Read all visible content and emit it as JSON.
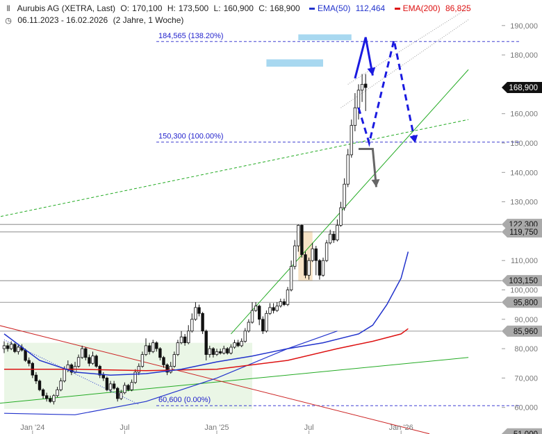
{
  "header": {
    "instrument": "Aurubis AG (XETRA, Last)",
    "open_label": "O:",
    "open": "170,100",
    "high_label": "H:",
    "high": "173,500",
    "low_label": "L:",
    "low": "160,900",
    "close_label": "C:",
    "close": "168,900",
    "ema50_label": "EMA(50)",
    "ema50_value": "112,464",
    "ema200_label": "EMA(200)",
    "ema200_value": "86,825",
    "date_range": "06.11.2023 - 16.02.2026",
    "period": "(2 Jahre, 1 Woche)",
    "instrument_icon": "candles-icon",
    "date_icon": "clock-icon"
  },
  "colors": {
    "ema50": "#2233cc",
    "ema200": "#dd1111",
    "up": "#ffffff",
    "down": "#111111",
    "fib": "#2222cc",
    "arrow_blue": "#1a1ae0",
    "arrow_gray": "#666666",
    "trend_green": "#22aa22",
    "trend_red": "#cc2222",
    "zone_blue": "#a8d8f0",
    "zone_orange": "#f5dcb8",
    "zone_green": "#eaf6e6"
  },
  "chart_data": {
    "type": "candlestick",
    "y_scale": "linear",
    "ylim": [
      50000,
      195000
    ],
    "y_ticks": [
      60000,
      70000,
      80000,
      90000,
      100000,
      110000,
      130000,
      140000,
      150000,
      160000,
      180000,
      190000
    ],
    "y_tick_labels": [
      "60,000",
      "70,000",
      "80,000",
      "90,000",
      "100,000",
      "110,000",
      "130,000",
      "140,000",
      "150,000",
      "160,000",
      "180,000",
      "190,000"
    ],
    "x_labels": [
      "Jan '24",
      "Jul",
      "Jan '25",
      "Jul",
      "Jan '26"
    ],
    "x_label_weeks": [
      8,
      34,
      60,
      86,
      112
    ],
    "price_labels": [
      {
        "text": "168,900",
        "value": 168900,
        "style": "dark"
      },
      {
        "text": "122,300",
        "value": 122300,
        "style": "gray"
      },
      {
        "text": "119,750",
        "value": 119750,
        "style": "gray"
      },
      {
        "text": "103,150",
        "value": 103150,
        "style": "gray"
      },
      {
        "text": "95,800",
        "value": 95800,
        "style": "gray"
      },
      {
        "text": "85,960",
        "value": 85960,
        "style": "gray"
      },
      {
        "text": "51,000",
        "value": 51000,
        "style": "gray"
      }
    ],
    "fib_levels": [
      {
        "text": "184,565 (138.20%)",
        "value": 184565
      },
      {
        "text": "150,300 (100.00%)",
        "value": 150300
      },
      {
        "text": "60,600 (0.00%)",
        "value": 60600
      }
    ],
    "horizontal_lines": [
      122300,
      119750,
      103150,
      95800,
      85960
    ],
    "ema50": [
      [
        0,
        85000
      ],
      [
        10,
        76000
      ],
      [
        20,
        72000
      ],
      [
        30,
        71000
      ],
      [
        40,
        71500
      ],
      [
        50,
        73000
      ],
      [
        60,
        75500
      ],
      [
        70,
        77500
      ],
      [
        80,
        80000
      ],
      [
        90,
        82000
      ],
      [
        100,
        85000
      ],
      [
        104,
        88000
      ],
      [
        108,
        95000
      ],
      [
        112,
        104000
      ],
      [
        114,
        113000
      ]
    ],
    "ema200": [
      [
        0,
        73000
      ],
      [
        20,
        73000
      ],
      [
        40,
        72500
      ],
      [
        60,
        73000
      ],
      [
        80,
        76000
      ],
      [
        94,
        80000
      ],
      [
        104,
        82500
      ],
      [
        112,
        85000
      ],
      [
        114,
        86800
      ]
    ],
    "candles": [
      [
        0,
        80000,
        81000,
        82500,
        78500
      ],
      [
        1,
        81000,
        80000,
        82000,
        79000
      ],
      [
        2,
        80000,
        81500,
        82500,
        79500
      ],
      [
        3,
        81500,
        79000,
        82000,
        78500
      ],
      [
        4,
        79000,
        80500,
        81500,
        78000
      ],
      [
        5,
        80500,
        79500,
        81500,
        79000
      ],
      [
        6,
        79500,
        76000,
        80000,
        75500
      ],
      [
        7,
        76000,
        75000,
        77000,
        74000
      ],
      [
        8,
        75000,
        71000,
        75500,
        70000
      ],
      [
        9,
        71000,
        69000,
        72000,
        68000
      ],
      [
        10,
        69000,
        66000,
        69500,
        65500
      ],
      [
        11,
        66000,
        64000,
        66500,
        63000
      ],
      [
        12,
        64000,
        63000,
        65000,
        62000
      ],
      [
        13,
        63000,
        62000,
        64000,
        61500
      ],
      [
        14,
        62000,
        64000,
        64500,
        61000
      ],
      [
        15,
        64000,
        66000,
        67000,
        63500
      ],
      [
        16,
        66000,
        69000,
        70000,
        65500
      ],
      [
        17,
        69000,
        73000,
        74000,
        68500
      ],
      [
        18,
        73000,
        74500,
        76000,
        72000
      ],
      [
        19,
        74500,
        72000,
        75000,
        71000
      ],
      [
        20,
        72000,
        74000,
        75500,
        71500
      ],
      [
        21,
        74000,
        77000,
        78000,
        73500
      ],
      [
        22,
        77000,
        80000,
        81000,
        76500
      ],
      [
        23,
        80000,
        77000,
        80500,
        76000
      ],
      [
        24,
        77000,
        75000,
        78000,
        74000
      ],
      [
        25,
        75000,
        77500,
        79000,
        74500
      ],
      [
        26,
        77500,
        74000,
        78000,
        73500
      ],
      [
        27,
        74000,
        71000,
        74500,
        70000
      ],
      [
        28,
        71000,
        70000,
        72000,
        69000
      ],
      [
        29,
        70000,
        66000,
        70500,
        65500
      ],
      [
        30,
        66000,
        68000,
        69000,
        65000
      ],
      [
        31,
        68000,
        66500,
        69000,
        66000
      ],
      [
        32,
        66500,
        63000,
        67000,
        62000
      ],
      [
        33,
        63000,
        65000,
        66000,
        62500
      ],
      [
        34,
        65000,
        67500,
        68500,
        64500
      ],
      [
        35,
        67500,
        66000,
        68000,
        65500
      ],
      [
        36,
        66000,
        68500,
        69500,
        65500
      ],
      [
        37,
        68500,
        72000,
        73000,
        68000
      ],
      [
        38,
        72000,
        74000,
        75000,
        71000
      ],
      [
        39,
        74000,
        78000,
        79000,
        73500
      ],
      [
        40,
        78000,
        81000,
        83500,
        77500
      ],
      [
        41,
        81000,
        79000,
        82000,
        78000
      ],
      [
        42,
        79000,
        82000,
        83000,
        78500
      ],
      [
        43,
        82000,
        80000,
        82500,
        79000
      ],
      [
        44,
        80000,
        77000,
        80500,
        76000
      ],
      [
        45,
        77000,
        74500,
        77500,
        73500
      ],
      [
        46,
        74500,
        72000,
        75000,
        71000
      ],
      [
        47,
        72000,
        74000,
        75500,
        71500
      ],
      [
        48,
        74000,
        78000,
        79000,
        73500
      ],
      [
        49,
        78000,
        82000,
        83000,
        77500
      ],
      [
        50,
        82000,
        84000,
        86000,
        81500
      ],
      [
        51,
        84000,
        82000,
        85000,
        81000
      ],
      [
        52,
        82000,
        86000,
        88000,
        81500
      ],
      [
        53,
        86000,
        90000,
        92000,
        85500
      ],
      [
        54,
        90000,
        94000,
        95800,
        89500
      ],
      [
        55,
        94000,
        92000,
        95000,
        91000
      ],
      [
        56,
        92000,
        86000,
        92500,
        85000
      ],
      [
        57,
        86000,
        78000,
        86500,
        76000
      ],
      [
        58,
        78000,
        80000,
        81000,
        77000
      ],
      [
        59,
        80000,
        78000,
        80500,
        77000
      ],
      [
        60,
        78000,
        79000,
        80000,
        77500
      ],
      [
        61,
        79000,
        78500,
        80000,
        78000
      ],
      [
        62,
        78500,
        80000,
        81000,
        78000
      ],
      [
        63,
        80000,
        78500,
        80500,
        78000
      ],
      [
        64,
        78500,
        80500,
        81500,
        78000
      ],
      [
        65,
        80500,
        82000,
        83000,
        80000
      ],
      [
        66,
        82000,
        81000,
        83000,
        80500
      ],
      [
        67,
        81000,
        82500,
        83500,
        80500
      ],
      [
        68,
        82500,
        86000,
        87000,
        82000
      ],
      [
        69,
        86000,
        89000,
        90000,
        85500
      ],
      [
        70,
        89000,
        93000,
        95800,
        88500
      ],
      [
        71,
        93000,
        94500,
        95800,
        92500
      ],
      [
        72,
        94500,
        90000,
        95000,
        88000
      ],
      [
        73,
        90000,
        86000,
        91000,
        85000
      ],
      [
        74,
        86000,
        92000,
        93000,
        85500
      ],
      [
        75,
        92000,
        94000,
        95500,
        91500
      ],
      [
        76,
        94000,
        93000,
        95500,
        92000
      ],
      [
        77,
        93000,
        94500,
        95800,
        92500
      ],
      [
        78,
        94500,
        96000,
        97000,
        94000
      ],
      [
        79,
        96000,
        95000,
        97000,
        94500
      ],
      [
        80,
        95000,
        100000,
        101000,
        94500
      ],
      [
        81,
        100000,
        108000,
        110000,
        99500
      ],
      [
        82,
        108000,
        115000,
        117000,
        107000
      ],
      [
        83,
        115000,
        122000,
        122300,
        113000
      ],
      [
        84,
        122000,
        112000,
        122300,
        111000
      ],
      [
        85,
        112000,
        105000,
        113000,
        104000
      ],
      [
        86,
        105000,
        110000,
        111000,
        103500
      ],
      [
        87,
        110000,
        114000,
        116000,
        109500
      ],
      [
        88,
        114000,
        110000,
        115000,
        105000
      ],
      [
        89,
        110000,
        105000,
        110500,
        103500
      ],
      [
        90,
        105000,
        110000,
        111000,
        104500
      ],
      [
        91,
        110000,
        116000,
        117000,
        109500
      ],
      [
        92,
        116000,
        119000,
        120500,
        115500
      ],
      [
        93,
        119000,
        117000,
        120000,
        116000
      ],
      [
        94,
        117000,
        122000,
        124000,
        116500
      ],
      [
        95,
        122000,
        128000,
        130000,
        121500
      ],
      [
        96,
        128000,
        136000,
        138000,
        127000
      ],
      [
        97,
        136000,
        146000,
        148000,
        135000
      ],
      [
        98,
        146000,
        156000,
        158000,
        145000
      ],
      [
        99,
        156000,
        162000,
        167000,
        154000
      ],
      [
        100,
        162000,
        168000,
        170000,
        158000
      ],
      [
        101,
        168000,
        170000,
        173500,
        164000
      ],
      [
        102,
        170100,
        168900,
        173500,
        160900
      ]
    ]
  },
  "annotations": {
    "arrows_blue": [
      [
        [
          99,
          172000
        ],
        [
          102,
          186000
        ],
        [
          104,
          173000
        ]
      ],
      [
        [
          100,
          162000
        ],
        [
          103,
          150000
        ],
        [
          110,
          185000
        ],
        [
          116,
          150000
        ]
      ]
    ],
    "arrow_gray": [
      [
        100,
        148000
      ],
      [
        104,
        148000
      ],
      [
        105,
        135000
      ]
    ],
    "blue_zones": [
      {
        "x0": 74,
        "x1": 90,
        "y0": 176000,
        "y1": 178500
      },
      {
        "x0": 83,
        "x1": 98,
        "y0": 185000,
        "y1": 187000
      }
    ],
    "orange_zone": {
      "x0": 83,
      "x1": 87,
      "y0": 103000,
      "y1": 120000
    },
    "green_zone": {
      "x0": 0,
      "x1": 70,
      "y0": 59500,
      "y1": 82000
    },
    "trend_green_main": [
      [
        64,
        85000
      ],
      [
        131,
        175000
      ]
    ],
    "trend_green_dashed": [
      [
        -5,
        124000
      ],
      [
        131,
        158000
      ]
    ],
    "trend_green_low": [
      [
        -5,
        61000
      ],
      [
        131,
        77000
      ]
    ],
    "trend_red": [
      [
        -5,
        89000
      ],
      [
        120,
        51000
      ]
    ],
    "channel_dotted": [
      [
        [
          95,
          162000
        ],
        [
          131,
          192000
        ]
      ],
      [
        [
          97,
          170000
        ],
        [
          131,
          196000
        ]
      ]
    ],
    "blue_dotted_down": [
      [
        0,
        83000
      ],
      [
        38,
        61000
      ]
    ],
    "blue_trend": [
      [
        0,
        58000
      ],
      [
        20,
        57500
      ],
      [
        40,
        62000
      ],
      [
        60,
        70000
      ],
      [
        80,
        80000
      ],
      [
        94,
        86000
      ]
    ]
  }
}
